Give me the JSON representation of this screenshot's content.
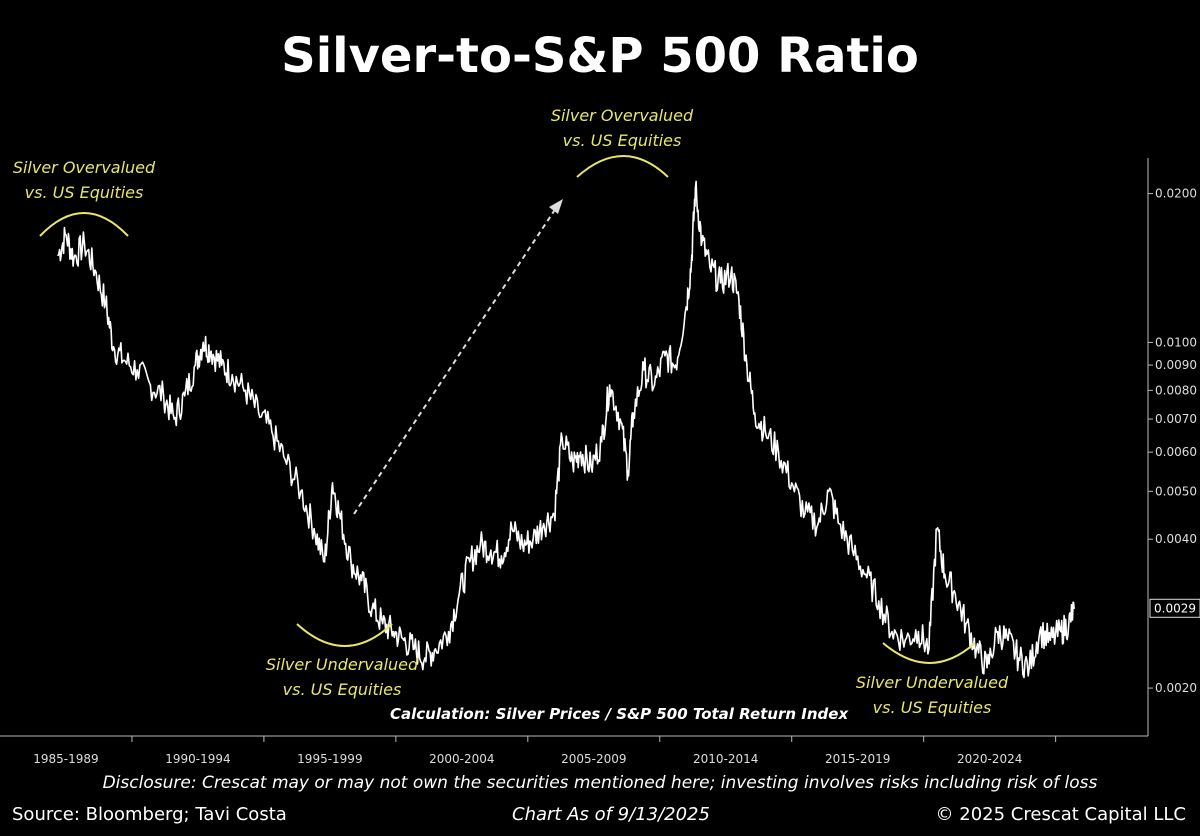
{
  "chart_data": {
    "type": "line",
    "title": "Silver-to-S&P 500 Ratio",
    "y_scale": "log",
    "ylim": [
      0.0016,
      0.0245
    ],
    "y_ticks": [
      "0.0200",
      "0.0100",
      "0.0090",
      "0.0080",
      "0.0070",
      "0.0060",
      "0.0050",
      "0.0040",
      "0.0020"
    ],
    "last_value_label": "0.0029",
    "x_tick_labels": [
      "1985-1989",
      "1990-1994",
      "1995-1999",
      "2000-2004",
      "2005-2009",
      "2010-2014",
      "2015-2019",
      "2020-2024"
    ],
    "xlim": [
      1985.0,
      2028.5
    ],
    "series": [
      {
        "values": [
          [
            1987.2,
            0.015
          ],
          [
            1987.5,
            0.0165
          ],
          [
            1987.8,
            0.0148
          ],
          [
            1988.2,
            0.0158
          ],
          [
            1988.6,
            0.014
          ],
          [
            1989.0,
            0.012
          ],
          [
            1989.3,
            0.0098
          ],
          [
            1989.7,
            0.0092
          ],
          [
            1990.2,
            0.0088
          ],
          [
            1990.7,
            0.0082
          ],
          [
            1991.2,
            0.0078
          ],
          [
            1991.6,
            0.007
          ],
          [
            1992.0,
            0.0078
          ],
          [
            1992.4,
            0.009
          ],
          [
            1992.7,
            0.01
          ],
          [
            1993.0,
            0.0096
          ],
          [
            1993.4,
            0.009
          ],
          [
            1993.8,
            0.0086
          ],
          [
            1994.3,
            0.008
          ],
          [
            1994.8,
            0.0072
          ],
          [
            1995.3,
            0.0066
          ],
          [
            1995.8,
            0.0058
          ],
          [
            1996.4,
            0.005
          ],
          [
            1996.9,
            0.0042
          ],
          [
            1997.3,
            0.0036
          ],
          [
            1997.6,
            0.0052
          ],
          [
            1997.9,
            0.0044
          ],
          [
            1998.3,
            0.0036
          ],
          [
            1998.7,
            0.0033
          ],
          [
            1999.1,
            0.0029
          ],
          [
            1999.5,
            0.0027
          ],
          [
            1999.9,
            0.0026
          ],
          [
            2000.3,
            0.0025
          ],
          [
            2000.7,
            0.0024
          ],
          [
            2001.1,
            0.0023
          ],
          [
            2001.5,
            0.0024
          ],
          [
            2002.0,
            0.0026
          ],
          [
            2002.4,
            0.0031
          ],
          [
            2002.8,
            0.0036
          ],
          [
            2003.2,
            0.0039
          ],
          [
            2003.6,
            0.0038
          ],
          [
            2004.0,
            0.0037
          ],
          [
            2004.4,
            0.0042
          ],
          [
            2004.8,
            0.0039
          ],
          [
            2005.2,
            0.004
          ],
          [
            2005.6,
            0.0043
          ],
          [
            2006.0,
            0.0045
          ],
          [
            2006.3,
            0.0064
          ],
          [
            2006.7,
            0.0057
          ],
          [
            2007.0,
            0.006
          ],
          [
            2007.4,
            0.0056
          ],
          [
            2007.8,
            0.0063
          ],
          [
            2008.1,
            0.0082
          ],
          [
            2008.5,
            0.007
          ],
          [
            2008.8,
            0.0055
          ],
          [
            2009.0,
            0.0072
          ],
          [
            2009.4,
            0.0088
          ],
          [
            2009.8,
            0.0082
          ],
          [
            2010.2,
            0.0094
          ],
          [
            2010.6,
            0.009
          ],
          [
            2011.0,
            0.0118
          ],
          [
            2011.2,
            0.0145
          ],
          [
            2011.35,
            0.0205
          ],
          [
            2011.6,
            0.016
          ],
          [
            2011.9,
            0.0142
          ],
          [
            2012.3,
            0.0132
          ],
          [
            2012.7,
            0.0138
          ],
          [
            2013.0,
            0.0122
          ],
          [
            2013.3,
            0.009
          ],
          [
            2013.6,
            0.0072
          ],
          [
            2014.0,
            0.0066
          ],
          [
            2014.5,
            0.006
          ],
          [
            2015.0,
            0.0052
          ],
          [
            2015.5,
            0.0045
          ],
          [
            2016.0,
            0.0043
          ],
          [
            2016.4,
            0.005
          ],
          [
            2016.8,
            0.0043
          ],
          [
            2017.3,
            0.0038
          ],
          [
            2017.8,
            0.0034
          ],
          [
            2018.3,
            0.003
          ],
          [
            2018.8,
            0.0026
          ],
          [
            2019.3,
            0.0025
          ],
          [
            2019.8,
            0.0026
          ],
          [
            2020.2,
            0.0024
          ],
          [
            2020.5,
            0.0042
          ],
          [
            2020.8,
            0.0034
          ],
          [
            2021.2,
            0.0031
          ],
          [
            2021.6,
            0.0027
          ],
          [
            2022.0,
            0.0024
          ],
          [
            2022.4,
            0.0022
          ],
          [
            2022.8,
            0.0026
          ],
          [
            2023.2,
            0.0025
          ],
          [
            2023.6,
            0.0023
          ],
          [
            2024.0,
            0.0022
          ],
          [
            2024.4,
            0.0026
          ],
          [
            2024.8,
            0.0025
          ],
          [
            2025.2,
            0.0026
          ],
          [
            2025.5,
            0.0027
          ],
          [
            2025.7,
            0.0029
          ]
        ]
      }
    ]
  },
  "annotations": [
    {
      "line1": "Silver Overvalued",
      "line2": "vs. US Equities"
    },
    {
      "line1": "Silver Overvalued",
      "line2": "vs. US Equities"
    },
    {
      "line1": "Silver Undervalued",
      "line2": "vs. US Equities"
    },
    {
      "line1": "Silver Undervalued",
      "line2": "vs. US Equities"
    }
  ],
  "calculation_note": "Calculation: Silver Prices / S&P 500 Total Return Index",
  "disclosure": "Disclosure: Crescat may or may not own the securities mentioned here; investing involves risks including risk of loss",
  "footer": {
    "source": "Source: Bloomberg; Tavi Costa",
    "as_of": "Chart As of 9/13/2025",
    "copyright": "© 2025 Crescat Capital LLC"
  },
  "colors": {
    "background": "#000000",
    "line": "#ffffff",
    "annotation": "#e8e66a",
    "axis": "#dddddd"
  }
}
